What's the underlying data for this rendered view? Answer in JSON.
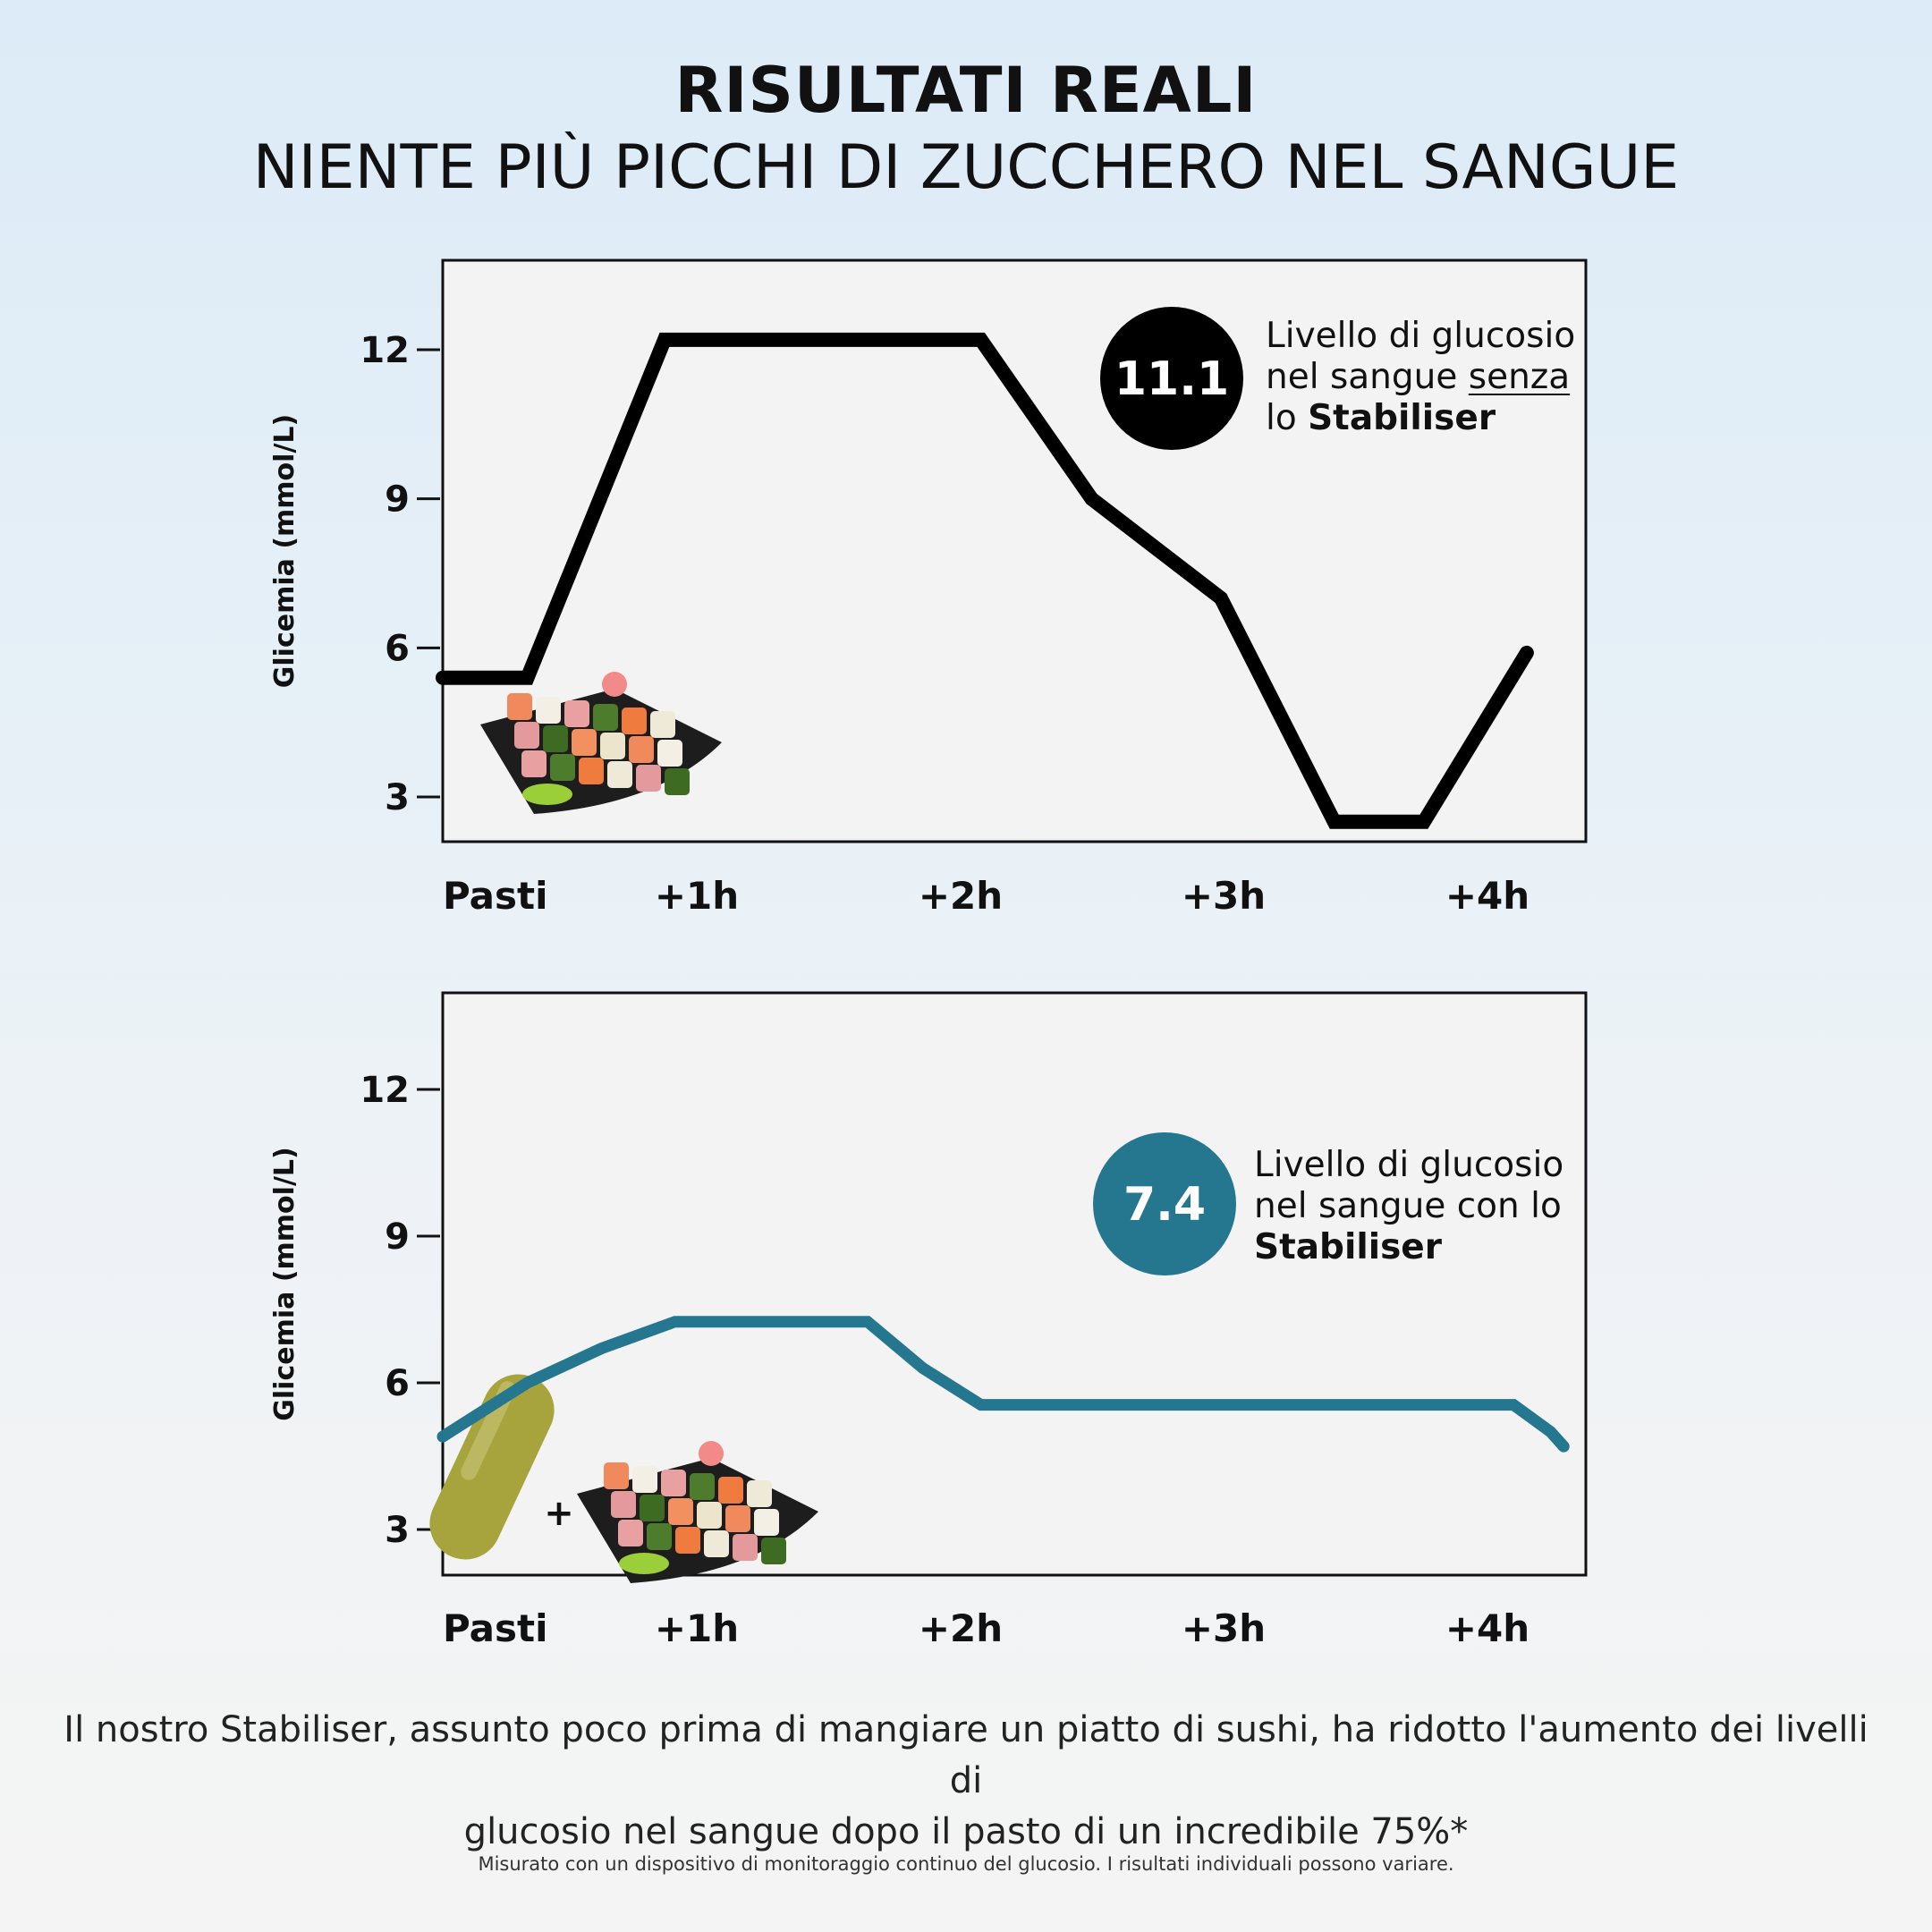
{
  "header": {
    "title": "RISULTATI REALI",
    "subtitle": "NIENTE PIÙ PICCHI DI ZUCCHERO NEL SANGUE"
  },
  "chart_data": [
    {
      "type": "line",
      "ylabel": "Glicemia (mmol/L)",
      "xlabel": "",
      "x_tick_labels": [
        "Pasti",
        "+1h",
        "+2h",
        "+3h",
        "+4h"
      ],
      "y_ticks": [
        3,
        6,
        9,
        12
      ],
      "ylim": [
        0.5,
        14.5
      ],
      "xlim": [
        0,
        4.3
      ],
      "grid": false,
      "color": "#000000",
      "x": [
        0,
        0.36,
        0.88,
        2.08,
        2.5,
        2.99,
        3.42,
        3.76,
        4.15
      ],
      "y": [
        5.4,
        5.4,
        12.2,
        12.2,
        9.0,
        7.0,
        2.5,
        2.5,
        5.9
      ],
      "badge_value": "11.1",
      "legend": {
        "line1": "Livello di glucosio",
        "line2a": "nel sangue ",
        "line2b": "senza",
        "line3a": "lo ",
        "line3b": "Stabiliser"
      },
      "image": "sushi-plate"
    },
    {
      "type": "line",
      "ylabel": "Glicemia (mmol/L)",
      "xlabel": "",
      "x_tick_labels": [
        "Pasti",
        "+1h",
        "+2h",
        "+3h",
        "+4h"
      ],
      "y_ticks": [
        3,
        6,
        9,
        12
      ],
      "ylim": [
        0.5,
        14.5
      ],
      "xlim": [
        0,
        4.3
      ],
      "grid": false,
      "color": "#25768f",
      "x": [
        0,
        0.36,
        0.64,
        0.92,
        1.65,
        1.86,
        2.08,
        4.1,
        4.24,
        4.29
      ],
      "y": [
        4.9,
        6.0,
        6.7,
        7.25,
        7.25,
        6.3,
        5.55,
        5.55,
        5.0,
        4.7
      ],
      "badge_value": "7.4",
      "legend": {
        "line1": "Livello di glucosio",
        "line2a": "nel sangue con lo",
        "line3b": "Stabiliser"
      },
      "image": "capsule-plus-sushi-plate",
      "plus": "+"
    }
  ],
  "caption": {
    "line1": "Il nostro Stabiliser, assunto poco prima di mangiare un piatto di sushi, ha ridotto l'aumento dei livelli di",
    "line2": "glucosio nel sangue dopo il pasto di un incredibile 75%*"
  },
  "footnote": "Misurato con un dispositivo di monitoraggio continuo del glucosio. I risultati individuali possono variare.",
  "colors": {
    "background_top": "#dcebf7",
    "background_bottom": "#f4f4f4",
    "plot_bg": "#f3f3f3",
    "accent": "#25768f"
  }
}
